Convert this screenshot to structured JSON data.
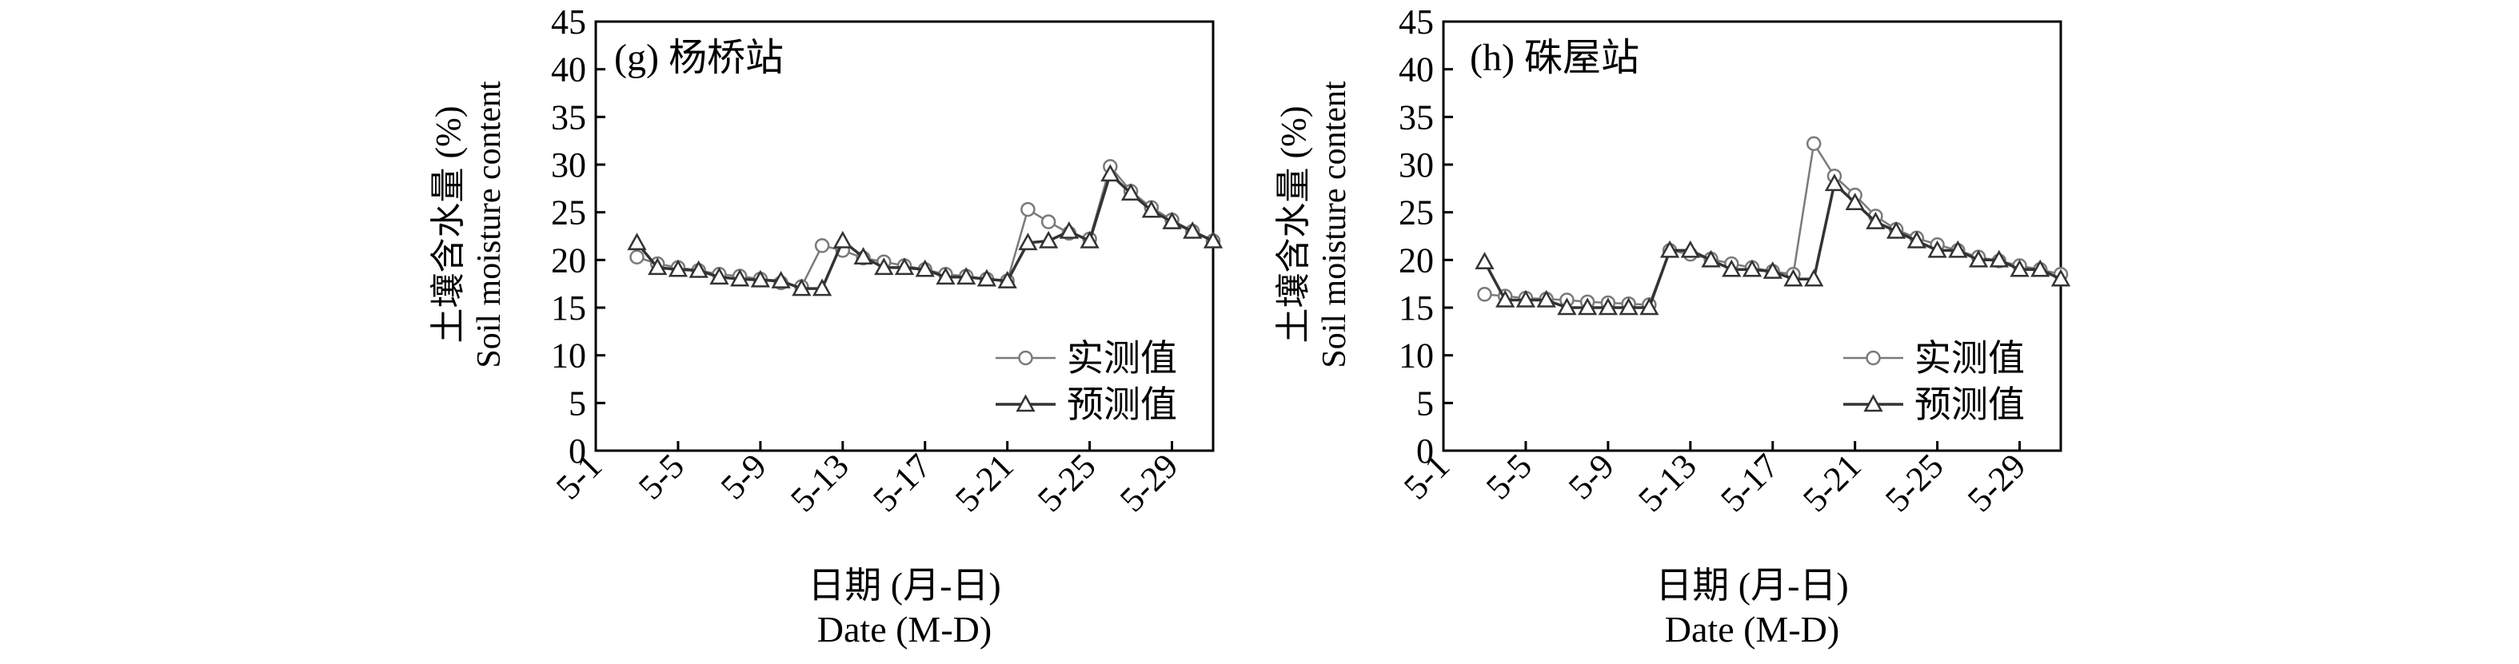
{
  "chart_data": [
    {
      "type": "line",
      "title": "(g) 杨桥站",
      "ylabel_cn": "土壤含水量 (%)",
      "ylabel_en": "Soil moisture content",
      "xlabel_cn": "日期 (月-日)",
      "xlabel_en": "Date (M-D)",
      "ylim": [
        0,
        45
      ],
      "yticks": [
        0,
        5,
        10,
        15,
        20,
        25,
        30,
        35,
        40,
        45
      ],
      "xlim": [
        1,
        31
      ],
      "xticks": [
        1,
        5,
        9,
        13,
        17,
        21,
        25,
        29
      ],
      "xtick_labels": [
        "5-1",
        "5-5",
        "5-9",
        "5-13",
        "5-17",
        "5-21",
        "5-25",
        "5-29"
      ],
      "grid": false,
      "legend_position": "bottom-right",
      "x": [
        3,
        4,
        5,
        6,
        7,
        8,
        9,
        10,
        11,
        12,
        13,
        14,
        15,
        16,
        17,
        18,
        19,
        20,
        21,
        22,
        23,
        24,
        25,
        26,
        27,
        28,
        29,
        30,
        31
      ],
      "series": [
        {
          "name": "实测值",
          "marker": "circle",
          "values": [
            20.3,
            19.6,
            19.2,
            18.9,
            18.5,
            18.3,
            18.0,
            17.6,
            17.2,
            21.5,
            21.0,
            20.2,
            19.8,
            19.4,
            19.0,
            18.5,
            18.3,
            18.0,
            17.8,
            25.3,
            24.0,
            22.8,
            22.2,
            29.8,
            27.2,
            25.5,
            24.2,
            23.0,
            22.0
          ]
        },
        {
          "name": "预测值",
          "marker": "triangle",
          "values": [
            21.8,
            19.2,
            19.0,
            18.9,
            18.2,
            18.0,
            17.9,
            17.8,
            17.0,
            17.0,
            22.0,
            20.3,
            19.2,
            19.2,
            19.0,
            18.2,
            18.2,
            18.0,
            17.8,
            21.8,
            22.0,
            23.0,
            22.0,
            29.0,
            27.0,
            25.2,
            24.0,
            23.0,
            22.0
          ]
        }
      ]
    },
    {
      "type": "line",
      "title": "(h) 硃屋站",
      "ylabel_cn": "土壤含水量 (%)",
      "ylabel_en": "Soil moisture content",
      "xlabel_cn": "日期 (月-日)",
      "xlabel_en": "Date (M-D)",
      "ylim": [
        0,
        45
      ],
      "yticks": [
        0,
        5,
        10,
        15,
        20,
        25,
        30,
        35,
        40,
        45
      ],
      "xlim": [
        1,
        31
      ],
      "xticks": [
        1,
        5,
        9,
        13,
        17,
        21,
        25,
        29
      ],
      "xtick_labels": [
        "5-1",
        "5-5",
        "5-9",
        "5-13",
        "5-17",
        "5-21",
        "5-25",
        "5-29"
      ],
      "grid": false,
      "legend_position": "bottom-right",
      "x": [
        3,
        4,
        5,
        6,
        7,
        8,
        9,
        10,
        11,
        12,
        13,
        14,
        15,
        16,
        17,
        18,
        19,
        20,
        21,
        22,
        23,
        24,
        25,
        26,
        27,
        28,
        29,
        30,
        31
      ],
      "series": [
        {
          "name": "实测值",
          "marker": "circle",
          "values": [
            16.4,
            16.2,
            16.0,
            15.9,
            15.8,
            15.6,
            15.5,
            15.4,
            15.3,
            21.0,
            20.6,
            20.1,
            19.6,
            19.2,
            18.8,
            18.5,
            32.2,
            28.8,
            26.8,
            24.6,
            23.2,
            22.3,
            21.6,
            21.0,
            20.3,
            19.9,
            19.4,
            19.0,
            18.5
          ]
        },
        {
          "name": "预测值",
          "marker": "triangle",
          "values": [
            19.8,
            15.8,
            15.8,
            15.8,
            15.0,
            15.0,
            15.0,
            15.0,
            15.0,
            21.0,
            21.0,
            20.0,
            19.0,
            19.0,
            18.8,
            18.0,
            18.0,
            28.0,
            26.0,
            24.0,
            23.0,
            22.0,
            21.0,
            21.0,
            20.0,
            20.0,
            19.0,
            19.0,
            18.0
          ]
        }
      ]
    }
  ]
}
